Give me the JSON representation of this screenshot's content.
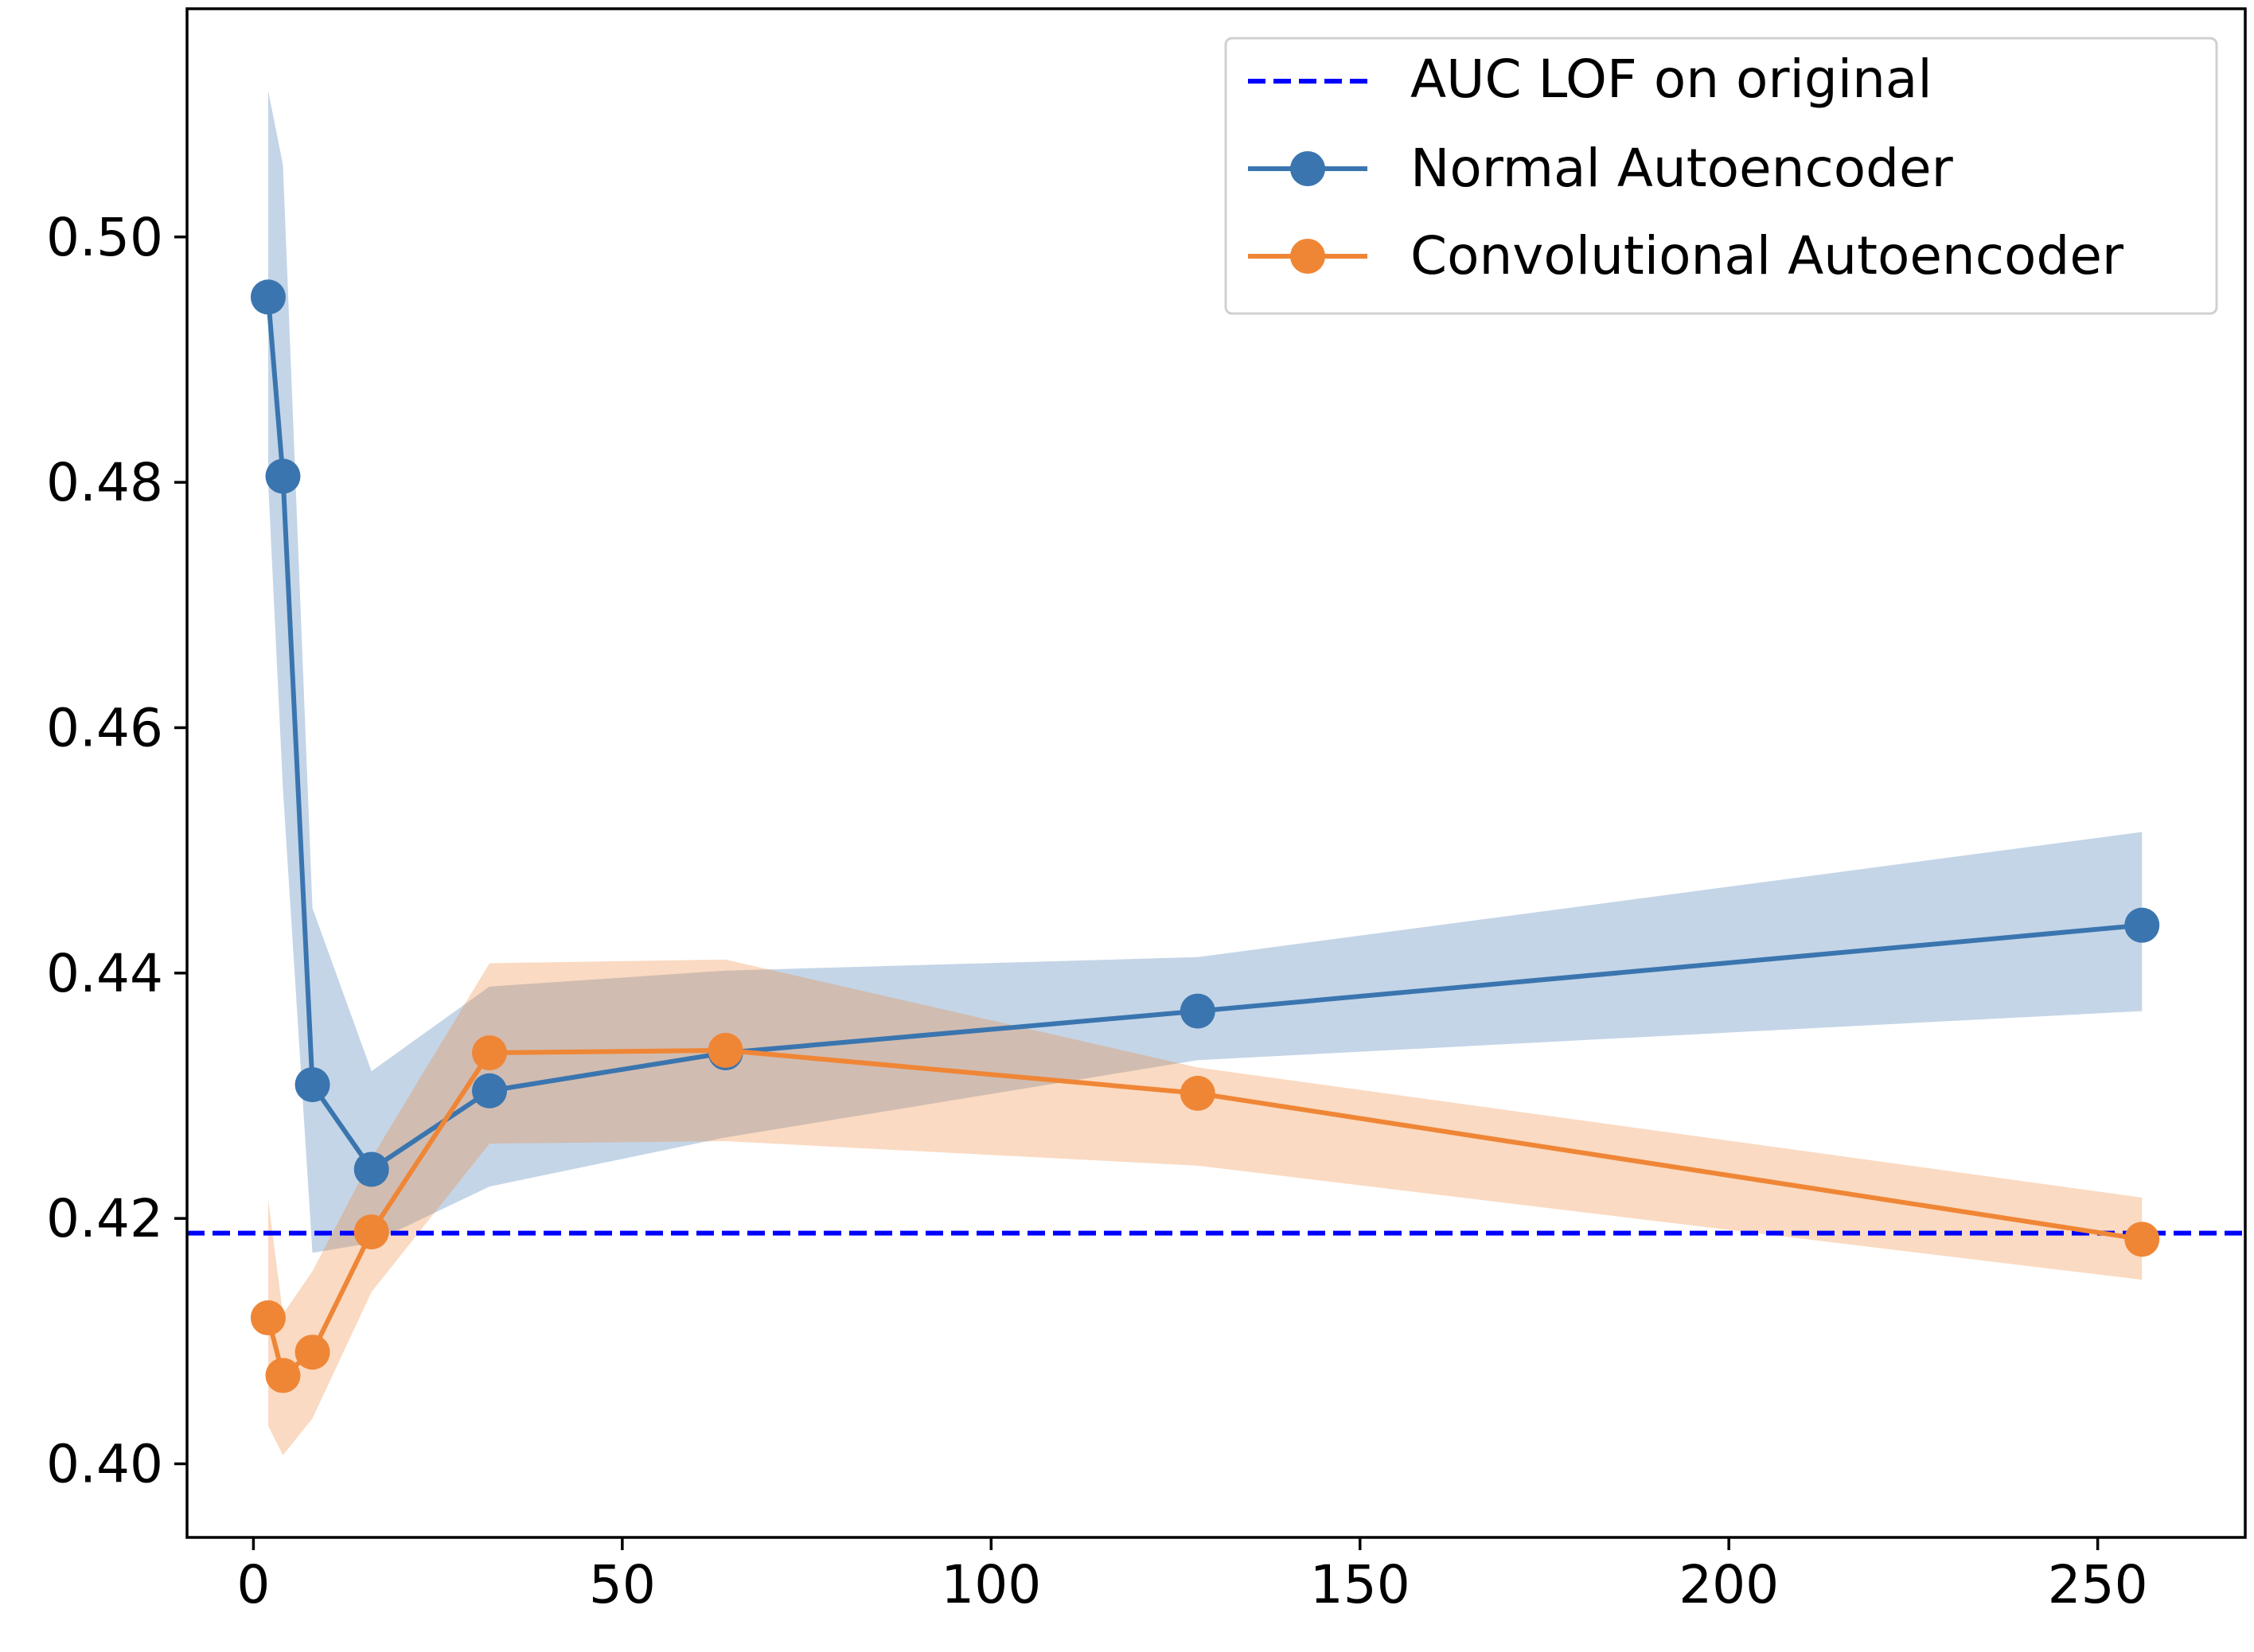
{
  "chart_data": {
    "type": "line",
    "title": "",
    "xlabel": "",
    "ylabel": "",
    "xlim": [
      -9,
      270
    ],
    "ylim": [
      0.394,
      0.5186
    ],
    "xticks": [
      0,
      50,
      100,
      150,
      200,
      250
    ],
    "yticks": [
      0.4,
      0.42,
      0.44,
      0.46,
      0.48,
      0.5
    ],
    "xtick_labels": [
      "0",
      "50",
      "100",
      "150",
      "200",
      "250"
    ],
    "ytick_labels": [
      "0.40",
      "0.42",
      "0.44",
      "0.46",
      "0.48",
      "0.50"
    ],
    "grid": false,
    "legend_position": "top-right",
    "hline": {
      "name": "AUC LOF on original",
      "y": 0.4188,
      "color": "#0000ff",
      "style": "dashed"
    },
    "series": [
      {
        "name": "Normal Autoencoder",
        "color": "#3a75af",
        "x": [
          2,
          4,
          8,
          16,
          32,
          64,
          128,
          256
        ],
        "y": [
          0.4951,
          0.4805,
          0.4309,
          0.424,
          0.4304,
          0.4335,
          0.4369,
          0.4439
        ],
        "upper": [
          0.5119,
          0.5059,
          0.4453,
          0.432,
          0.4389,
          0.4402,
          0.4413,
          0.4515
        ],
        "lower": [
          0.48,
          0.455,
          0.4172,
          0.418,
          0.4226,
          0.4266,
          0.4329,
          0.4369
        ]
      },
      {
        "name": "Convolutional Autoencoder",
        "color": "#ef8636",
        "x": [
          2,
          4,
          8,
          16,
          32,
          64,
          128,
          256
        ],
        "y": [
          0.4119,
          0.4072,
          0.4091,
          0.4189,
          0.4335,
          0.4337,
          0.4302,
          0.4183
        ],
        "upper": [
          0.4215,
          0.4122,
          0.4157,
          0.4249,
          0.4408,
          0.4411,
          0.4323,
          0.4217
        ],
        "lower": [
          0.4031,
          0.4007,
          0.4037,
          0.414,
          0.4261,
          0.4263,
          0.4243,
          0.415
        ]
      }
    ]
  }
}
